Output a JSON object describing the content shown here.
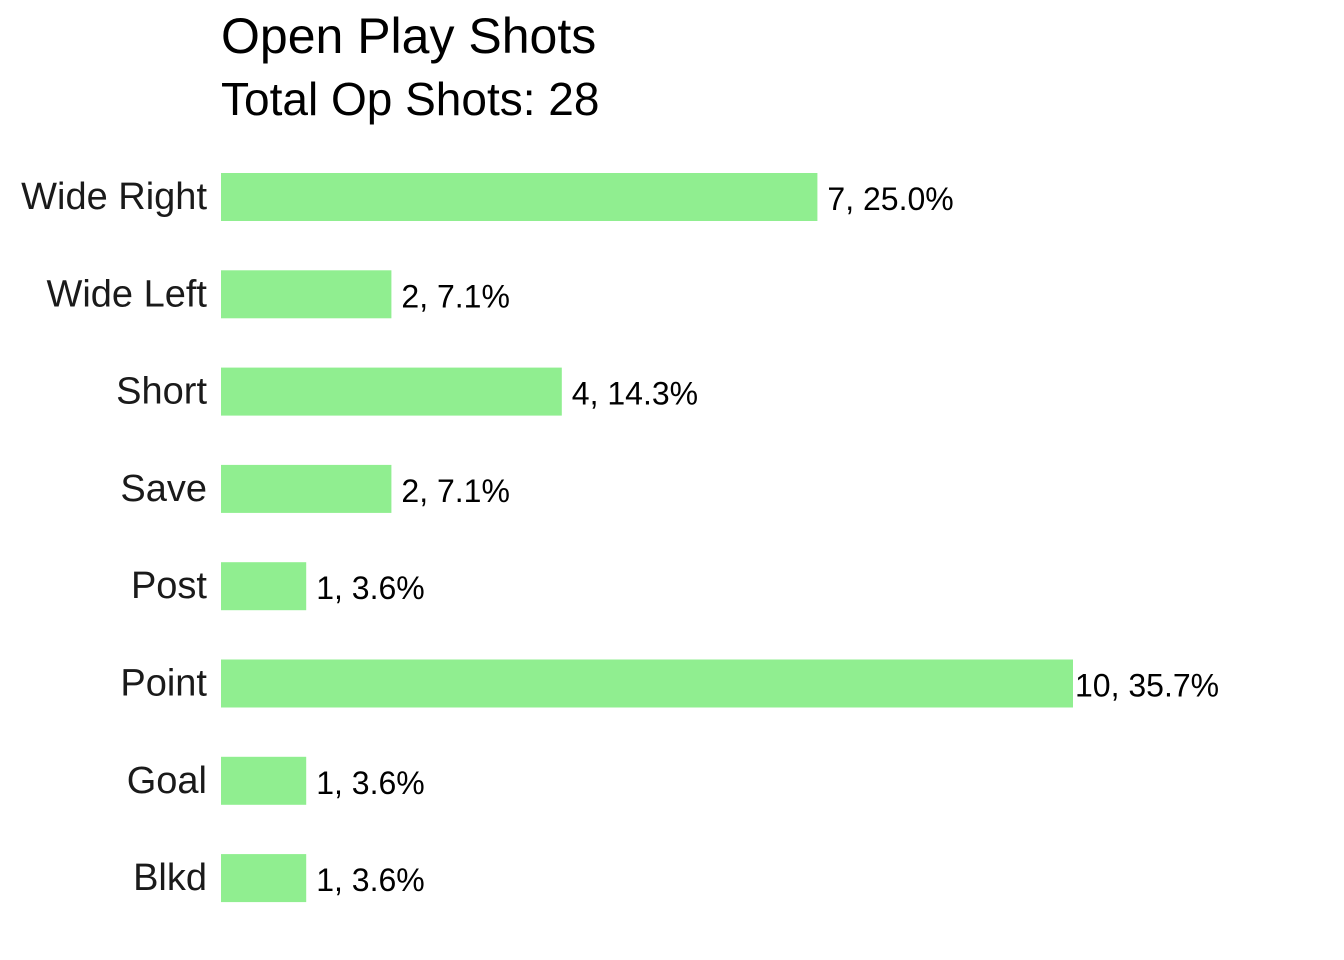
{
  "chart_data": {
    "type": "bar",
    "orientation": "horizontal",
    "title": "Open Play Shots",
    "subtitle": "Total Op Shots: 28",
    "xlabel": "",
    "ylabel": "",
    "grid": false,
    "bar_color": "#90ee90",
    "categories": [
      "Wide Right",
      "Wide Left",
      "Short",
      "Save",
      "Post",
      "Point",
      "Goal",
      "Blkd"
    ],
    "values": [
      7,
      2,
      4,
      2,
      1,
      10,
      1,
      1
    ],
    "labels": [
      "7, 25.0%",
      "2, 7.1%",
      "4, 14.3%",
      "2, 7.1%",
      "1, 3.6%",
      "10, 35.7%",
      "1, 3.6%",
      "1, 3.6%"
    ],
    "xlim": [
      0,
      10
    ]
  }
}
